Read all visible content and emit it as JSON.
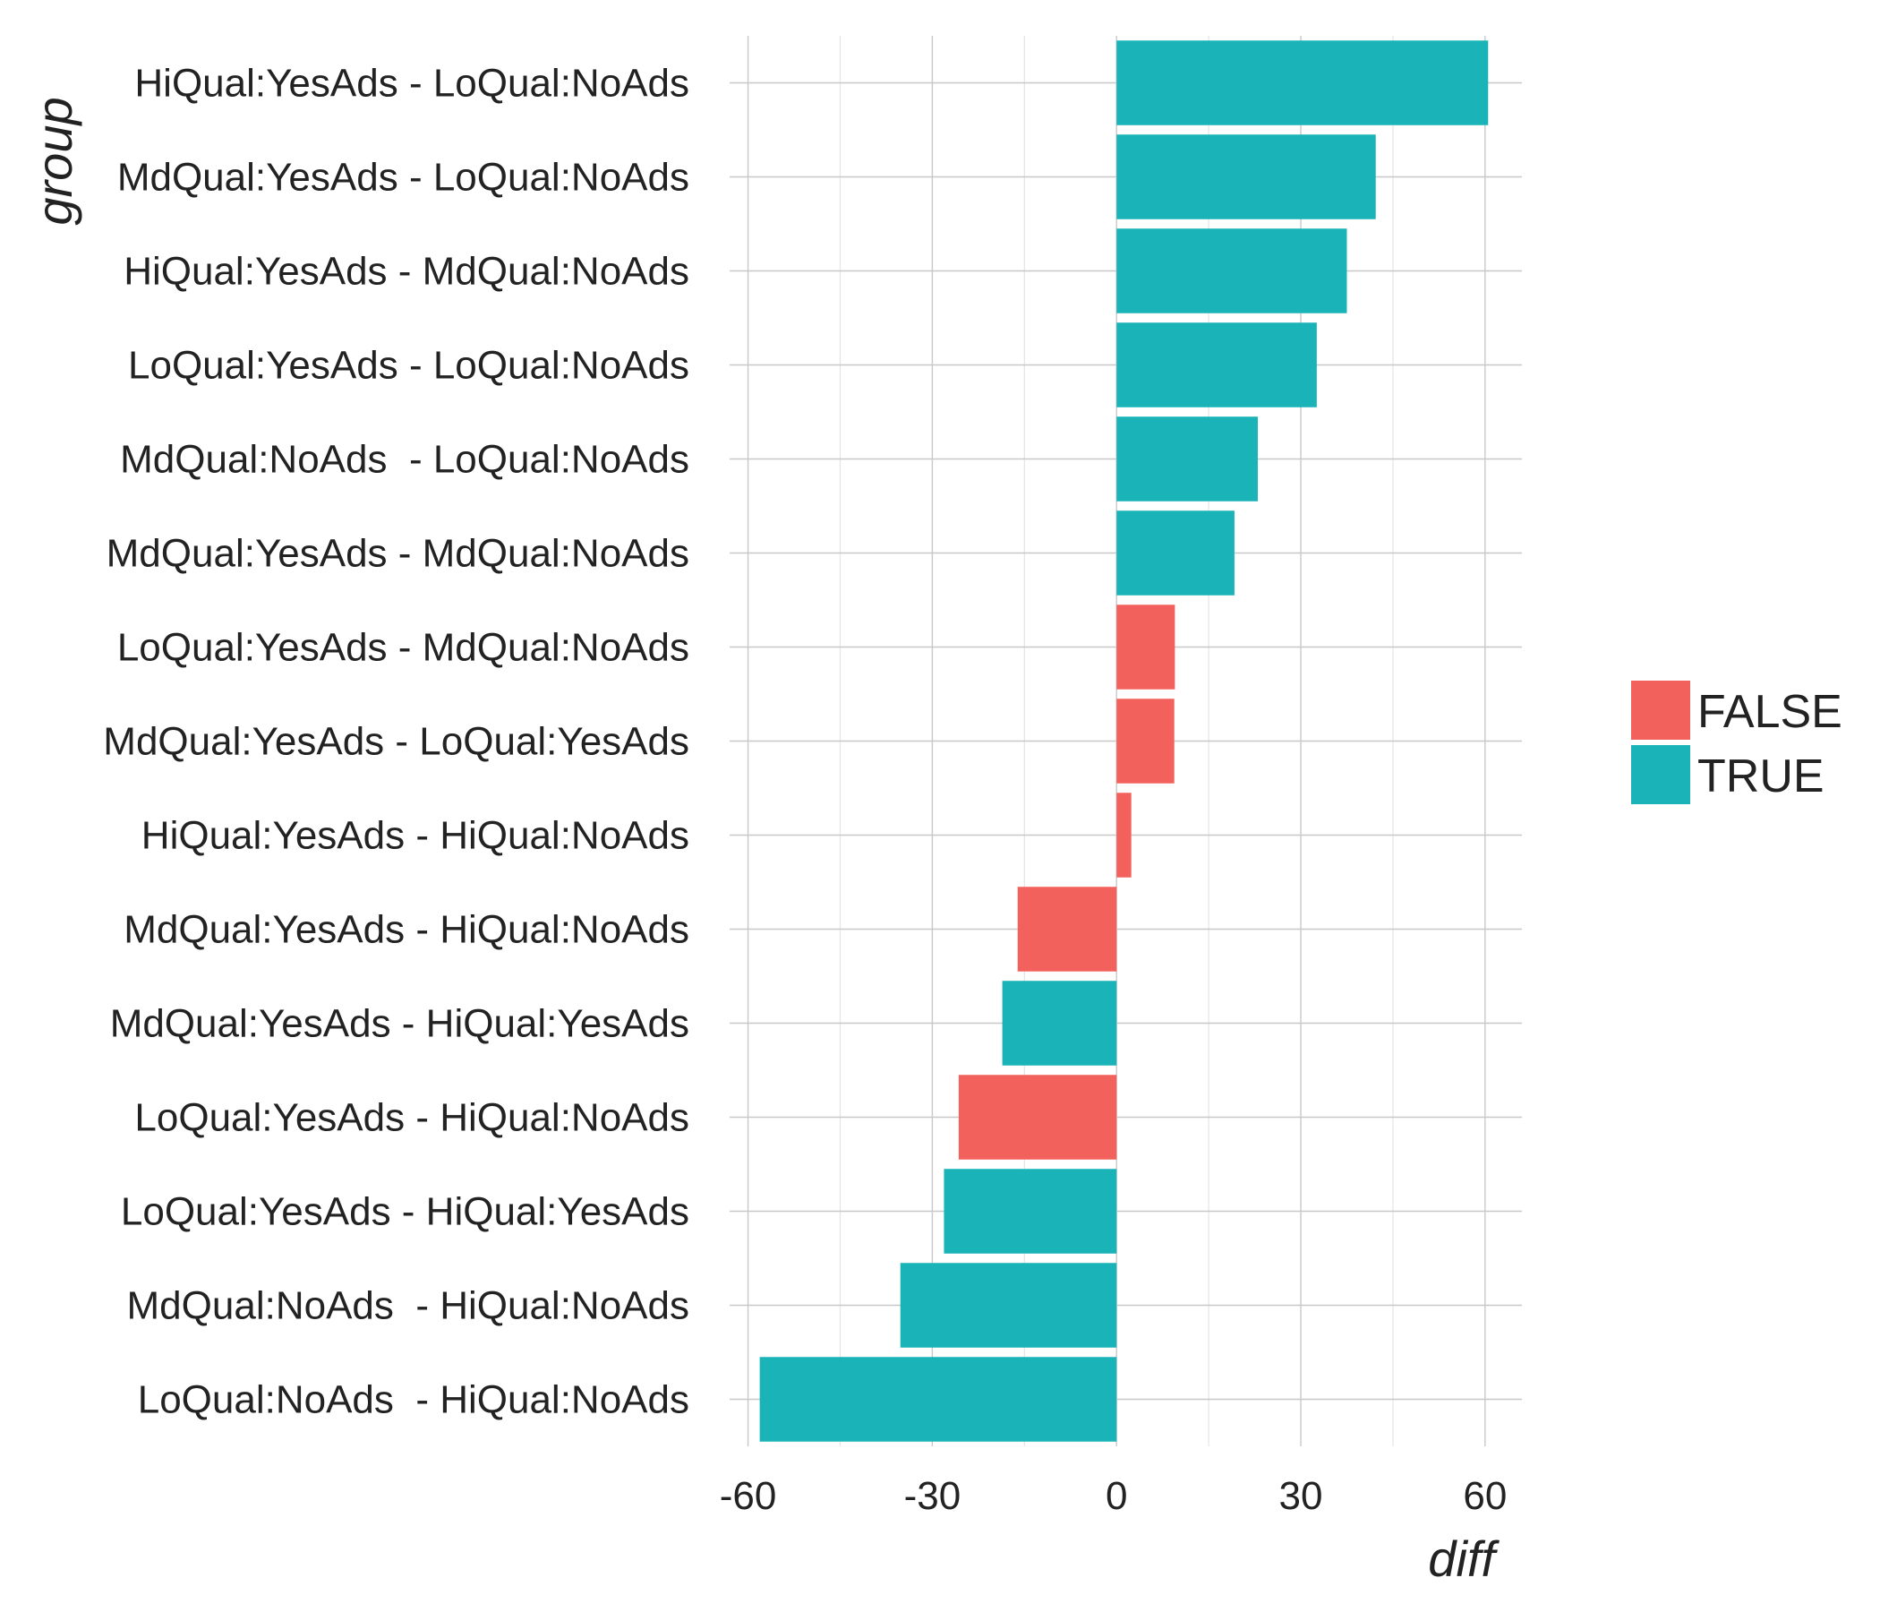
{
  "chart_data": {
    "type": "bar",
    "orientation": "horizontal",
    "xlabel": "diff",
    "ylabel": "group",
    "xlim": [
      -63,
      66
    ],
    "xticks": [
      -60,
      -30,
      0,
      30,
      60
    ],
    "grid": true,
    "legend": {
      "placement": "right",
      "title": ""
    },
    "colors": {
      "FALSE": "#F3615D",
      "TRUE": "#1AB4B8"
    },
    "categories": [
      "HiQual:YesAds - LoQual:NoAds",
      "MdQual:YesAds - LoQual:NoAds",
      "HiQual:YesAds - MdQual:NoAds",
      "LoQual:YesAds - LoQual:NoAds",
      "MdQual:NoAds  - LoQual:NoAds",
      "MdQual:YesAds - MdQual:NoAds",
      "LoQual:YesAds - MdQual:NoAds",
      "MdQual:YesAds - LoQual:YesAds",
      "HiQual:YesAds - HiQual:NoAds",
      "MdQual:YesAds - HiQual:NoAds",
      "MdQual:YesAds - HiQual:YesAds",
      "LoQual:YesAds - HiQual:NoAds",
      "LoQual:YesAds - HiQual:YesAds",
      "MdQual:NoAds  - HiQual:NoAds",
      "LoQual:NoAds  - HiQual:NoAds"
    ],
    "values": [
      60.5,
      42.2,
      37.5,
      32.6,
      23.0,
      19.2,
      9.5,
      9.4,
      2.4,
      -16.1,
      -18.6,
      -25.7,
      -28.1,
      -35.2,
      -58.1
    ],
    "significant": [
      "TRUE",
      "TRUE",
      "TRUE",
      "TRUE",
      "TRUE",
      "TRUE",
      "FALSE",
      "FALSE",
      "FALSE",
      "FALSE",
      "TRUE",
      "FALSE",
      "TRUE",
      "TRUE",
      "TRUE"
    ],
    "legend_entries": [
      "FALSE",
      "TRUE"
    ]
  }
}
